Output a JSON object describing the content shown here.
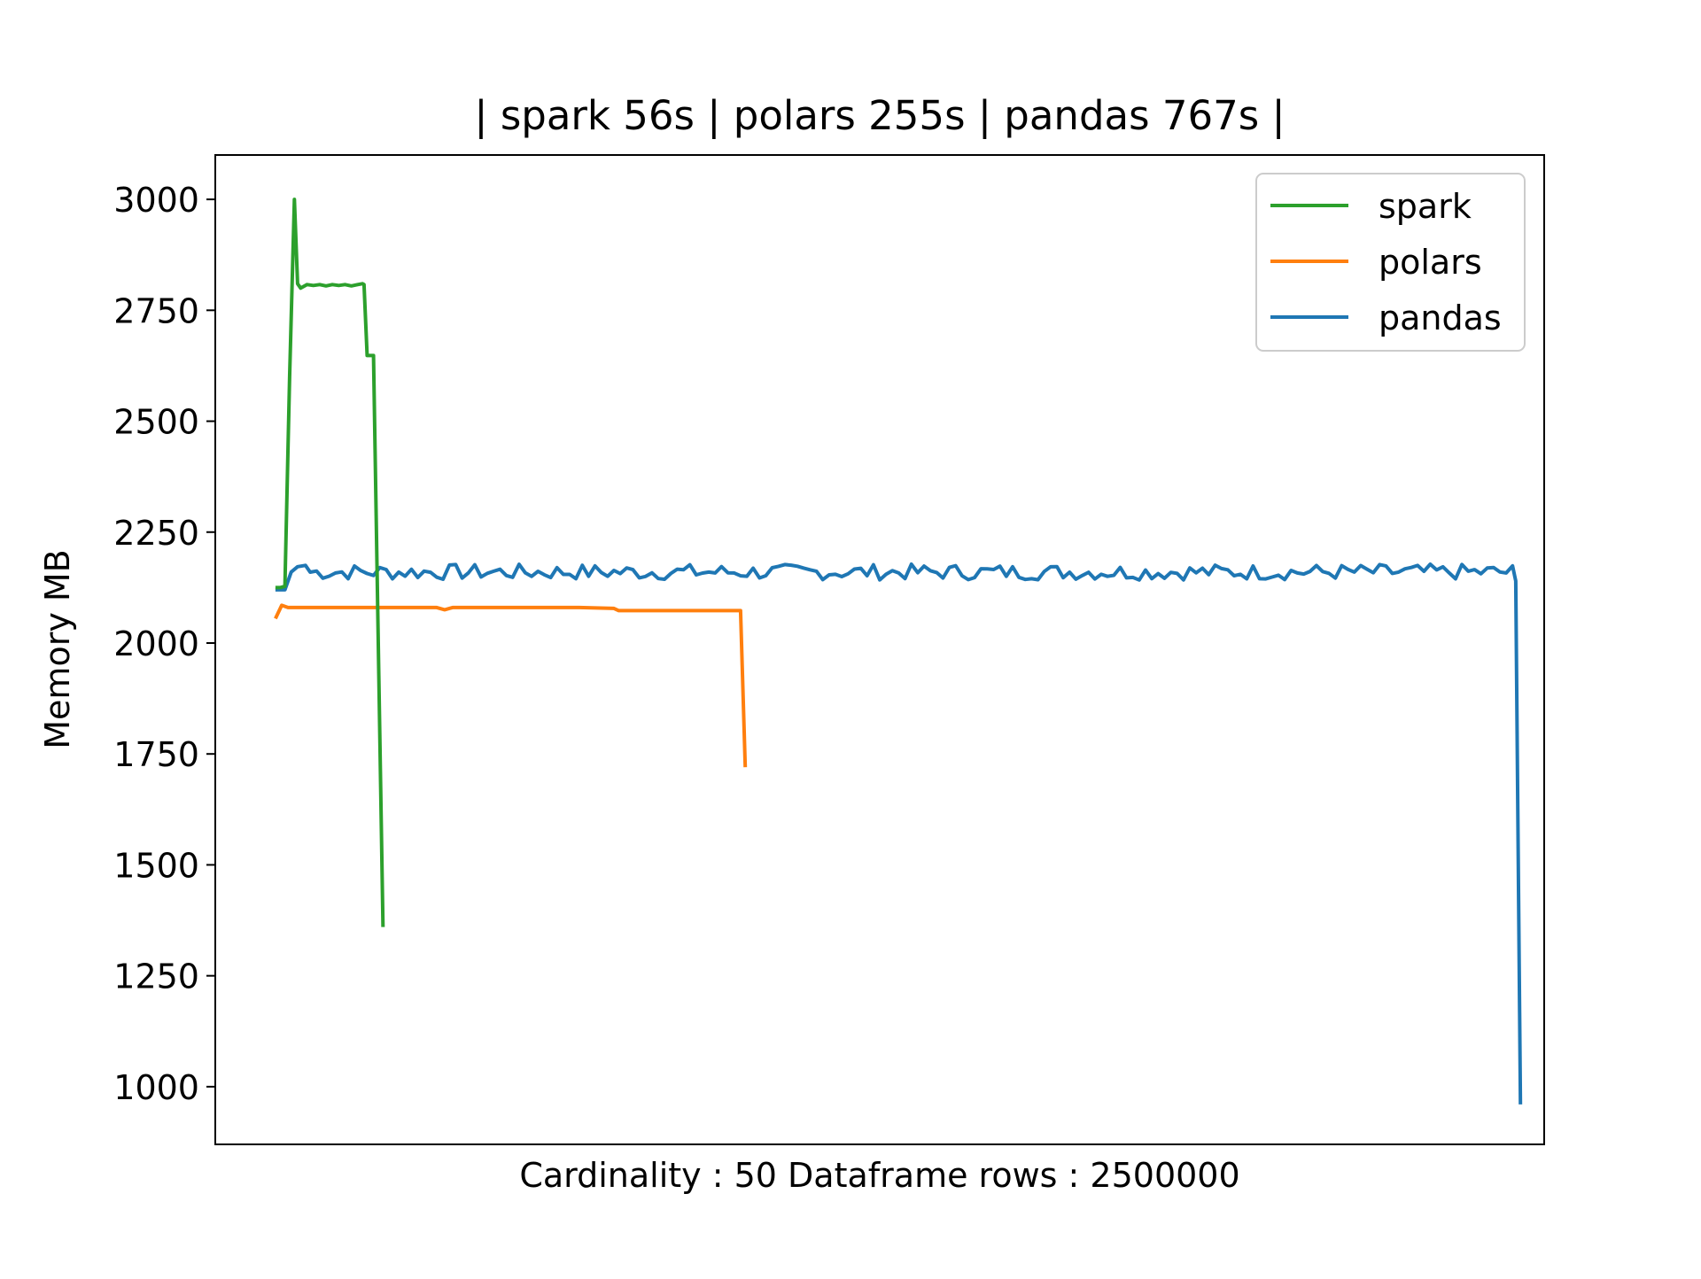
{
  "chart_data": {
    "type": "line",
    "title": "| spark 56s | polars 255s | pandas 767s |",
    "xlabel": "Cardinality : 50 Dataframe rows : 2500000",
    "ylabel": "Memory MB",
    "ylim": [
      870,
      3100
    ],
    "xlim": [
      0,
      840
    ],
    "x_ticks_shown": false,
    "y_ticks": [
      1000,
      1250,
      1500,
      1750,
      2000,
      2250,
      2500,
      2750,
      3000
    ],
    "grid": false,
    "legend_position": "top-right",
    "series": [
      {
        "name": "spark",
        "color": "#2ca02c",
        "points": [
          [
            38,
            2125
          ],
          [
            41,
            2125
          ],
          [
            44,
            2128
          ],
          [
            47,
            2600
          ],
          [
            50,
            3000
          ],
          [
            52,
            2810
          ],
          [
            54,
            2800
          ],
          [
            58,
            2808
          ],
          [
            62,
            2806
          ],
          [
            66,
            2808
          ],
          [
            70,
            2805
          ],
          [
            74,
            2808
          ],
          [
            78,
            2806
          ],
          [
            82,
            2808
          ],
          [
            86,
            2805
          ],
          [
            90,
            2808
          ],
          [
            93,
            2810
          ],
          [
            94,
            2808
          ],
          [
            96,
            2648
          ],
          [
            100,
            2648
          ],
          [
            106,
            1360
          ]
        ]
      },
      {
        "name": "polars",
        "color": "#ff7f0e",
        "points": [
          [
            38,
            2055
          ],
          [
            42,
            2085
          ],
          [
            46,
            2080
          ],
          [
            60,
            2080
          ],
          [
            80,
            2080
          ],
          [
            100,
            2080
          ],
          [
            120,
            2080
          ],
          [
            140,
            2080
          ],
          [
            145,
            2075
          ],
          [
            150,
            2080
          ],
          [
            170,
            2080
          ],
          [
            200,
            2080
          ],
          [
            230,
            2080
          ],
          [
            252,
            2078
          ],
          [
            255,
            2073
          ],
          [
            290,
            2073
          ],
          [
            320,
            2073
          ],
          [
            332,
            2073
          ],
          [
            335,
            1720
          ]
        ]
      },
      {
        "name": "pandas",
        "color": "#1f77b4",
        "start": [
          [
            38,
            2120
          ],
          [
            44,
            2120
          ],
          [
            48,
            2160
          ],
          [
            52,
            2172
          ],
          [
            57,
            2175
          ]
        ],
        "fluctuation": {
          "x_from": 60,
          "x_to": 820,
          "step": 4,
          "low": 2142,
          "high": 2178
        },
        "end": [
          [
            822,
            2140
          ],
          [
            825,
            960
          ]
        ]
      }
    ]
  }
}
